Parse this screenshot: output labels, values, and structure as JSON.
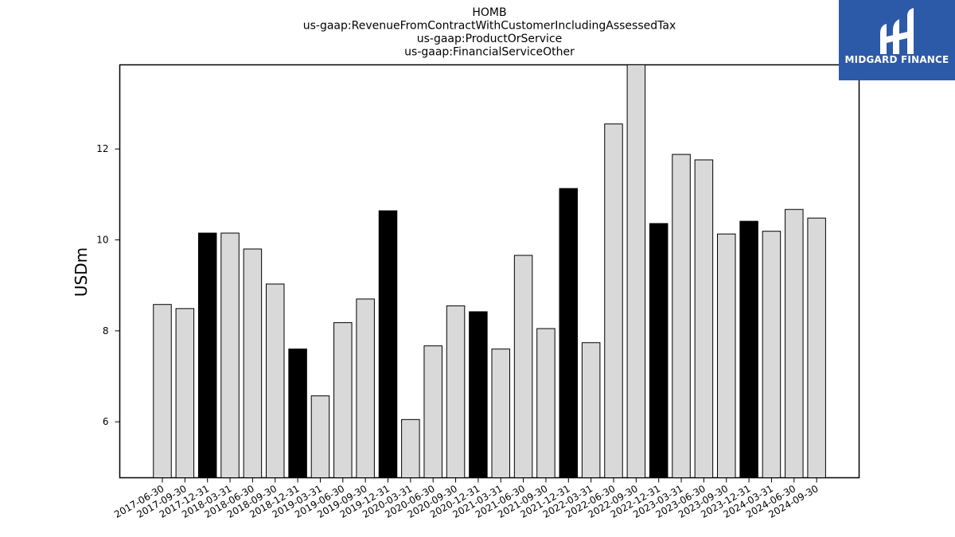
{
  "chart_data": {
    "type": "bar",
    "title": [
      "HOMB",
      "us-gaap:RevenueFromContractWithCustomerIncludingAssessedTax",
      "us-gaap:ProductOrService",
      "us-gaap:FinancialServiceOther"
    ],
    "xlabel": "",
    "ylabel": "USDm",
    "ylim": [
      4.77,
      13.85
    ],
    "yticks": [
      6,
      8,
      10,
      12
    ],
    "grid": false,
    "categories": [
      "2017-06-30",
      "2017-09-30",
      "2017-12-31",
      "2018-03-31",
      "2018-06-30",
      "2018-09-30",
      "2018-12-31",
      "2019-03-31",
      "2019-06-30",
      "2019-09-30",
      "2019-12-31",
      "2020-03-31",
      "2020-06-30",
      "2020-09-30",
      "2020-12-31",
      "2021-03-31",
      "2021-06-30",
      "2021-09-30",
      "2021-12-31",
      "2022-03-31",
      "2022-06-30",
      "2022-09-30",
      "2022-12-31",
      "2023-03-31",
      "2023-06-30",
      "2023-09-30",
      "2023-12-31",
      "2024-03-31",
      "2024-06-30",
      "2024-09-30"
    ],
    "values": [
      8.58,
      8.49,
      10.15,
      10.15,
      9.8,
      9.03,
      7.6,
      6.57,
      8.18,
      8.7,
      10.64,
      6.05,
      7.67,
      8.55,
      8.42,
      7.6,
      9.66,
      8.05,
      11.13,
      7.74,
      12.55,
      13.85,
      10.36,
      11.88,
      11.76,
      10.13,
      10.41,
      10.19,
      10.67,
      10.48
    ],
    "highlighted": [
      false,
      false,
      true,
      false,
      false,
      false,
      true,
      false,
      false,
      false,
      true,
      false,
      false,
      false,
      true,
      false,
      false,
      false,
      true,
      false,
      false,
      false,
      true,
      false,
      false,
      false,
      true,
      false,
      false,
      false
    ],
    "colors": {
      "bar": "#d9d9d9",
      "highlight": "#000000",
      "edge": "#000000"
    }
  },
  "logo": {
    "text": "MIDGARD FINANCE",
    "background": "#2d5aa8"
  }
}
